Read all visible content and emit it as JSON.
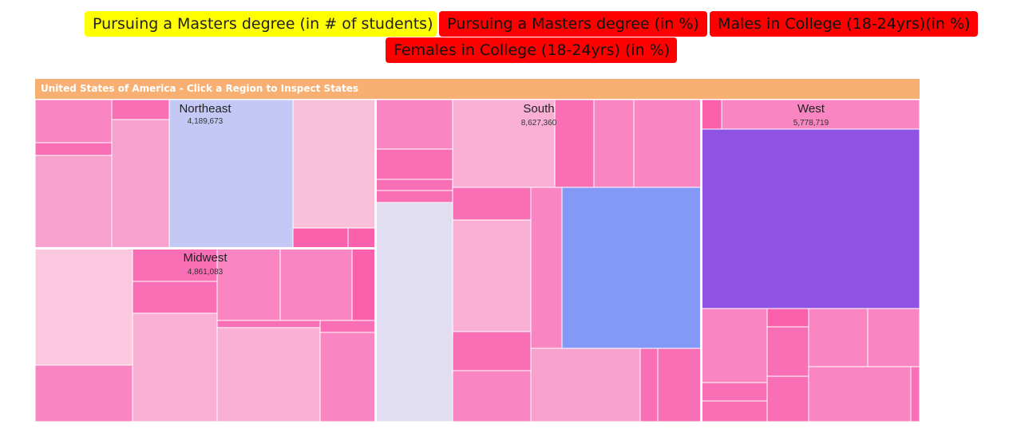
{
  "buttons": [
    {
      "label": "Pursuing a Masters degree (in # of students)",
      "active": true
    },
    {
      "label": "Pursuing a Masters degree (in %)",
      "active": false
    },
    {
      "label": "Males in College (18-24yrs)(in %)",
      "active": false
    },
    {
      "label": "Females in College (18-24yrs) (in %)",
      "active": false
    }
  ],
  "treemap": {
    "header": "United States of America - Click a Region to Inspect States",
    "colors": {
      "base_pink": "#f986c2",
      "highlight_lavender": "#c3c8f4",
      "highlight_blue": "#8398f7",
      "highlight_purple": "#8f53e3",
      "header": "#f7b071"
    }
  },
  "chart_data": {
    "type": "treemap",
    "title": "United States of America - Click a Region to Inspect States",
    "measure": "Pursuing a Masters degree (in # of students)",
    "regions": [
      {
        "name": "Northeast",
        "value": 4189673,
        "value_label": "4,189,673"
      },
      {
        "name": "South",
        "value": 8627360,
        "value_label": "8,627,360"
      },
      {
        "name": "West",
        "value": 5778719,
        "value_label": "5,778,719"
      },
      {
        "name": "Midwest",
        "value": 4861083,
        "value_label": "4,861,083"
      }
    ]
  }
}
